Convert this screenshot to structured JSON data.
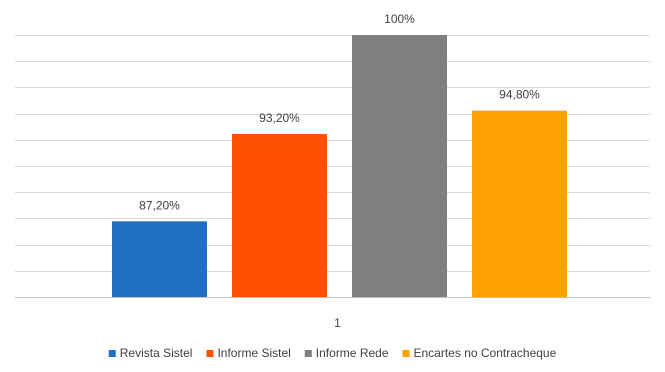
{
  "chart_data": {
    "type": "bar",
    "categories": [
      "1"
    ],
    "series": [
      {
        "name": "Revista Sistel",
        "values": [
          87.2
        ],
        "label": "87,20%",
        "color": "#1f6fc5"
      },
      {
        "name": "Informe Sistel",
        "values": [
          93.2
        ],
        "label": "93,20%",
        "color": "#ff5000"
      },
      {
        "name": "Informe Rede",
        "values": [
          100
        ],
        "label": "100%",
        "color": "#7f7f7f"
      },
      {
        "name": "Encartes no Contracheque",
        "values": [
          94.8
        ],
        "label": "94,80%",
        "color": "#ffa000"
      }
    ],
    "ylim": [
      82,
      100
    ],
    "grid": true,
    "legend_position": "bottom"
  }
}
